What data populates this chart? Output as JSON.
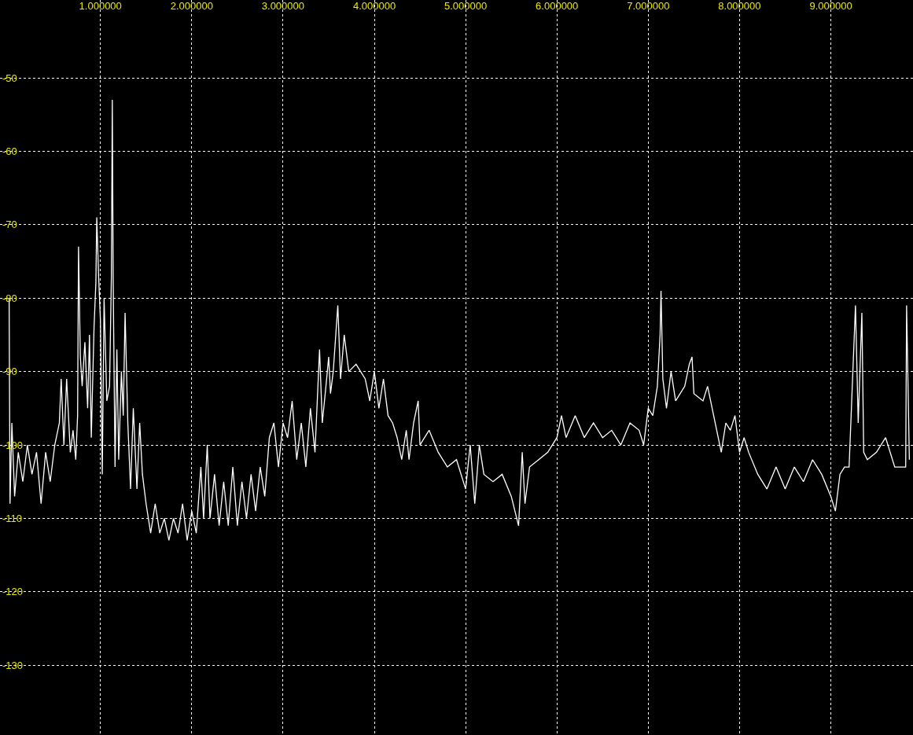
{
  "chart_data": {
    "type": "line",
    "grid": true,
    "marker": "none",
    "line_style": "solid",
    "xlim": [
      -0.1,
      9.9
    ],
    "ylim": [
      -139.5,
      -39.4
    ],
    "xticks": [
      {
        "value": 1,
        "label": "1.000000"
      },
      {
        "value": 2,
        "label": "2.000000"
      },
      {
        "value": 3,
        "label": "3.000000"
      },
      {
        "value": 4,
        "label": "4.000000"
      },
      {
        "value": 5,
        "label": "5.000000"
      },
      {
        "value": 6,
        "label": "6.000000"
      },
      {
        "value": 7,
        "label": "7.000000"
      },
      {
        "value": 8,
        "label": "8.000000"
      },
      {
        "value": 9,
        "label": "9.000000"
      }
    ],
    "yticks": [
      -50,
      -60,
      -70,
      -80,
      -90,
      -100,
      -110,
      -120,
      -130
    ],
    "x": [
      0.0,
      0.01,
      0.03,
      0.06,
      0.1,
      0.15,
      0.2,
      0.25,
      0.3,
      0.35,
      0.4,
      0.45,
      0.5,
      0.55,
      0.57,
      0.6,
      0.63,
      0.67,
      0.7,
      0.73,
      0.75,
      0.76,
      0.78,
      0.8,
      0.83,
      0.86,
      0.88,
      0.9,
      0.93,
      0.95,
      0.96,
      0.98,
      1.0,
      1.02,
      1.04,
      1.07,
      1.1,
      1.12,
      1.13,
      1.14,
      1.16,
      1.18,
      1.2,
      1.23,
      1.25,
      1.27,
      1.3,
      1.33,
      1.36,
      1.4,
      1.43,
      1.46,
      1.5,
      1.55,
      1.6,
      1.65,
      1.7,
      1.75,
      1.8,
      1.85,
      1.9,
      1.95,
      2.0,
      2.05,
      2.1,
      2.13,
      2.17,
      2.2,
      2.25,
      2.3,
      2.35,
      2.4,
      2.45,
      2.5,
      2.55,
      2.6,
      2.65,
      2.7,
      2.75,
      2.8,
      2.85,
      2.9,
      2.95,
      3.0,
      3.05,
      3.1,
      3.15,
      3.2,
      3.25,
      3.3,
      3.35,
      3.4,
      3.43,
      3.47,
      3.5,
      3.52,
      3.55,
      3.6,
      3.63,
      3.67,
      3.72,
      3.8,
      3.9,
      3.95,
      4.0,
      4.05,
      4.1,
      4.15,
      4.2,
      4.25,
      4.3,
      4.35,
      4.38,
      4.43,
      4.48,
      4.5,
      4.55,
      4.6,
      4.7,
      4.8,
      4.9,
      5.0,
      5.05,
      5.1,
      5.15,
      5.2,
      5.3,
      5.4,
      5.5,
      5.58,
      5.62,
      5.65,
      5.7,
      5.8,
      5.9,
      6.0,
      6.05,
      6.1,
      6.2,
      6.3,
      6.4,
      6.5,
      6.6,
      6.7,
      6.8,
      6.9,
      6.95,
      7.0,
      7.05,
      7.1,
      7.13,
      7.14,
      7.16,
      7.2,
      7.25,
      7.3,
      7.35,
      7.4,
      7.45,
      7.48,
      7.5,
      7.6,
      7.65,
      7.7,
      7.75,
      7.8,
      7.85,
      7.9,
      7.95,
      8.0,
      8.05,
      8.1,
      8.2,
      8.3,
      8.4,
      8.5,
      8.6,
      8.7,
      8.8,
      8.9,
      9.0,
      9.05,
      9.1,
      9.15,
      9.2,
      9.27,
      9.3,
      9.34,
      9.36,
      9.4,
      9.5,
      9.6,
      9.7,
      9.82,
      9.83,
      9.86
    ],
    "series": [
      {
        "color": "#ffffff",
        "values": [
          -80,
          -108,
          -97,
          -107,
          -101,
          -105,
          -100,
          -104,
          -101,
          -108,
          -101,
          -105,
          -100,
          -97,
          -91,
          -100,
          -91,
          -101,
          -98,
          -102,
          -96,
          -73,
          -88,
          -92,
          -86,
          -95,
          -85,
          -99,
          -84,
          -78,
          -69,
          -77,
          -83,
          -104,
          -80,
          -94,
          -92,
          -77,
          -53,
          -78,
          -103,
          -87,
          -102,
          -90,
          -96,
          -82,
          -97,
          -106,
          -95,
          -106,
          -97,
          -104,
          -108,
          -112,
          -108,
          -112,
          -110,
          -113,
          -110,
          -112,
          -108,
          -113,
          -109,
          -112,
          -103,
          -110,
          -100,
          -110,
          -104,
          -111,
          -105,
          -111,
          -103,
          -111,
          -105,
          -110,
          -104,
          -109,
          -103,
          -107,
          -99,
          -97,
          -103,
          -97,
          -99,
          -94,
          -102,
          -97,
          -103,
          -95,
          -101,
          -87,
          -97,
          -92,
          -88,
          -93,
          -90,
          -81,
          -91,
          -85,
          -90,
          -89,
          -91,
          -94,
          -90,
          -95,
          -91,
          -96,
          -97,
          -99,
          -102,
          -98,
          -102,
          -97,
          -94,
          -100,
          -99,
          -98,
          -101,
          -103,
          -102,
          -106,
          -100,
          -108,
          -100,
          -104,
          -105,
          -104,
          -107,
          -111,
          -101,
          -108,
          -103,
          -102,
          -101,
          -99,
          -96,
          -99,
          -96,
          -99,
          -97,
          -99,
          -98,
          -100,
          -97,
          -98,
          -100,
          -95,
          -96,
          -92,
          -85,
          -79,
          -91,
          -95,
          -90,
          -94,
          -93,
          -92,
          -89,
          -88,
          -93,
          -94,
          -92,
          -95,
          -98,
          -101,
          -97,
          -98,
          -96,
          -101,
          -99,
          -101,
          -104,
          -106,
          -103,
          -106,
          -103,
          -105,
          -102,
          -104,
          -107,
          -109,
          -104,
          -103,
          -103,
          -81,
          -97,
          -82,
          -101,
          -102,
          -101,
          -99,
          -103,
          -103,
          -81,
          -102
        ]
      }
    ]
  }
}
